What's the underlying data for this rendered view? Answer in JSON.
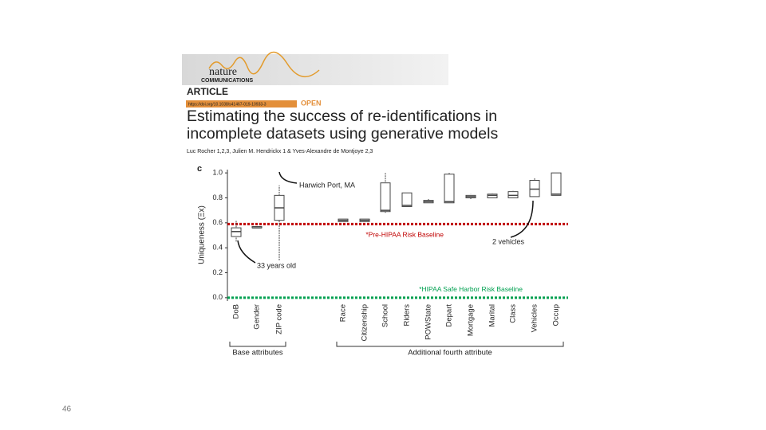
{
  "header": {
    "journal": "nature",
    "journal_sub": "COMMUNICATIONS",
    "section": "ARTICLE",
    "doi": "https://doi.org/10.1038/s41467-019-10933-3",
    "access": "OPEN",
    "title_lines": [
      "Estimating the success of re-identifications in",
      "incomplete datasets using generative models"
    ],
    "authors": "Luc Rocher 1,2,3, Julien M. Hendrickx 1 & Yves-Alexandre de Montjoye 2,3"
  },
  "figure": {
    "chart_data": {
      "type": "box",
      "panel_label": "c",
      "ylabel": "Uniqueness (Ξx)",
      "categories": [
        "DoB",
        "Gender",
        "ZIP code",
        "Race",
        "Citizenship",
        "School",
        "Riders",
        "POWState",
        "Depart",
        "Mortgage",
        "Marital",
        "Class",
        "Vehicles",
        "Occup"
      ],
      "min": [
        0.45,
        0.56,
        0.3,
        0.61,
        0.61,
        0.68,
        0.73,
        0.76,
        0.76,
        0.79,
        0.8,
        0.8,
        0.81,
        0.82
      ],
      "q1": [
        0.49,
        0.56,
        0.62,
        0.61,
        0.61,
        0.69,
        0.73,
        0.76,
        0.76,
        0.8,
        0.8,
        0.8,
        0.81,
        0.82
      ],
      "median": [
        0.53,
        0.56,
        0.72,
        0.62,
        0.62,
        0.7,
        0.74,
        0.77,
        0.77,
        0.81,
        0.82,
        0.82,
        0.87,
        0.83
      ],
      "q3": [
        0.56,
        0.57,
        0.82,
        0.63,
        0.63,
        0.92,
        0.84,
        0.78,
        0.99,
        0.82,
        0.83,
        0.85,
        0.94,
        1.0
      ],
      "max": [
        0.62,
        0.57,
        0.9,
        0.63,
        0.63,
        1.0,
        0.84,
        0.79,
        1.0,
        0.83,
        0.84,
        0.86,
        0.96,
        1.0
      ],
      "color": "#444444",
      "ylim": [
        -0.02,
        1.02
      ],
      "yticks": [
        {
          "value": 0,
          "label": "0.0"
        },
        0.2,
        0.4,
        0.6,
        0.8,
        {
          "value": 1,
          "label": "1.0"
        }
      ],
      "reference_lines": [
        {
          "label": "*Pre-HIPAA Risk Baseline",
          "value": 0.59,
          "color": "#c00000"
        },
        {
          "label": "*HIPAA Safe Harbor Risk Baseline",
          "value": 0.0,
          "color": "#00a050"
        }
      ],
      "annotations": [
        "Harwich Port, MA",
        "33 years old",
        "2 vehicles"
      ],
      "groups": [
        "Base attributes",
        "Additional fourth attribute"
      ]
    }
  },
  "slide_number": 46
}
